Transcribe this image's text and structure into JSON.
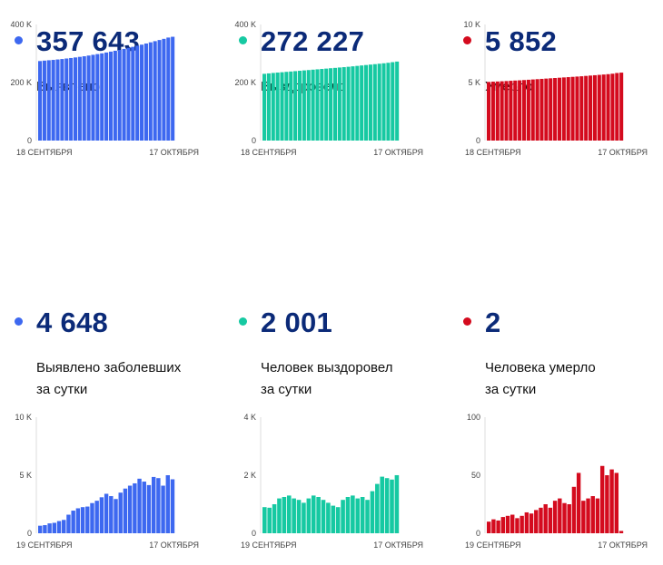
{
  "colors": {
    "blue": "#3d68f0",
    "teal": "#16c9a2",
    "red": "#d40b1e",
    "number": "#0b2a78"
  },
  "panels": [
    {
      "id": "detected",
      "color": "blue",
      "number": "357 643",
      "label_lines": [
        "Выявлено"
      ],
      "chart_data": {
        "type": "bar",
        "ylim": [
          0,
          400000
        ],
        "ytick_labels": [
          "0",
          "200 K",
          "400 K"
        ],
        "x_start_label": "18 СЕНТЯБРЯ",
        "x_end_label": "17 ОКТЯБРЯ",
        "values": [
          274000,
          275500,
          276800,
          278000,
          279500,
          281000,
          282800,
          284500,
          286500,
          288500,
          290500,
          293000,
          295500,
          298000,
          300500,
          303500,
          306500,
          309500,
          312500,
          316000,
          319500,
          323000,
          326800,
          330500,
          334500,
          338500,
          342500,
          346500,
          350500,
          355000,
          357643
        ]
      }
    },
    {
      "id": "recovered",
      "color": "teal",
      "number": "272 227",
      "label_lines": [
        "Выздоровело"
      ],
      "chart_data": {
        "type": "bar",
        "ylim": [
          0,
          400000
        ],
        "ytick_labels": [
          "0",
          "200 K",
          "400 K"
        ],
        "x_start_label": "18 СЕНТЯБРЯ",
        "x_end_label": "17 ОКТЯБРЯ",
        "values": [
          230000,
          231500,
          233000,
          234300,
          235500,
          236800,
          238000,
          239300,
          240500,
          241800,
          243000,
          244300,
          245500,
          246800,
          248000,
          249300,
          250500,
          251800,
          253000,
          254300,
          255800,
          257300,
          258800,
          260300,
          261800,
          263300,
          264800,
          266300,
          268000,
          270200,
          272227
        ]
      }
    },
    {
      "id": "deaths",
      "color": "red",
      "number": "5 852",
      "label_lines": [
        "Умерло"
      ],
      "chart_data": {
        "type": "bar",
        "ylim": [
          0,
          10000
        ],
        "ytick_labels": [
          "0",
          "5 K",
          "10 K"
        ],
        "x_start_label": "18 СЕНТЯБРЯ",
        "x_end_label": "17 ОКТЯБРЯ",
        "values": [
          5050,
          5070,
          5090,
          5110,
          5130,
          5150,
          5170,
          5190,
          5215,
          5240,
          5265,
          5290,
          5315,
          5340,
          5365,
          5390,
          5415,
          5440,
          5465,
          5490,
          5515,
          5540,
          5570,
          5600,
          5630,
          5660,
          5690,
          5720,
          5760,
          5820,
          5852
        ]
      }
    },
    {
      "id": "detected-daily",
      "color": "blue",
      "number": "4 648",
      "label_lines": [
        "Выявлено заболевших",
        "за сутки"
      ],
      "chart_data": {
        "type": "bar",
        "ylim": [
          0,
          10000
        ],
        "ytick_labels": [
          "0",
          "5 K",
          "10 K"
        ],
        "x_start_label": "19 СЕНТЯБРЯ",
        "x_end_label": "17 ОКТЯБРЯ",
        "values": [
          650,
          700,
          850,
          900,
          1050,
          1150,
          1600,
          1950,
          2150,
          2250,
          2300,
          2600,
          2800,
          3100,
          3400,
          3200,
          2950,
          3500,
          3850,
          4100,
          4300,
          4700,
          4450,
          4150,
          4850,
          4750,
          4100,
          5000,
          4648
        ]
      }
    },
    {
      "id": "recovered-daily",
      "color": "teal",
      "number": "2 001",
      "label_lines": [
        "Человек выздоровел",
        "за сутки"
      ],
      "chart_data": {
        "type": "bar",
        "ylim": [
          0,
          4000
        ],
        "ytick_labels": [
          "0",
          "2 K",
          "4 K"
        ],
        "x_start_label": "19 СЕНТЯБРЯ",
        "x_end_label": "17 ОКТЯБРЯ",
        "values": [
          900,
          880,
          1000,
          1200,
          1250,
          1300,
          1200,
          1150,
          1050,
          1200,
          1300,
          1250,
          1150,
          1050,
          950,
          900,
          1150,
          1250,
          1300,
          1200,
          1250,
          1150,
          1450,
          1700,
          1950,
          1900,
          1850,
          2001
        ]
      }
    },
    {
      "id": "deaths-daily",
      "color": "red",
      "number": "2",
      "label_lines": [
        "Человека умерло",
        "за сутки"
      ],
      "chart_data": {
        "type": "bar",
        "ylim": [
          0,
          100
        ],
        "ytick_labels": [
          "0",
          "50",
          "100"
        ],
        "x_start_label": "19 СЕНТЯБРЯ",
        "x_end_label": "17 ОКТЯБРЯ",
        "values": [
          10,
          12,
          11,
          14,
          15,
          16,
          13,
          15,
          18,
          17,
          20,
          22,
          25,
          22,
          28,
          30,
          26,
          25,
          40,
          52,
          28,
          30,
          32,
          30,
          58,
          50,
          55,
          52,
          2
        ]
      }
    }
  ]
}
